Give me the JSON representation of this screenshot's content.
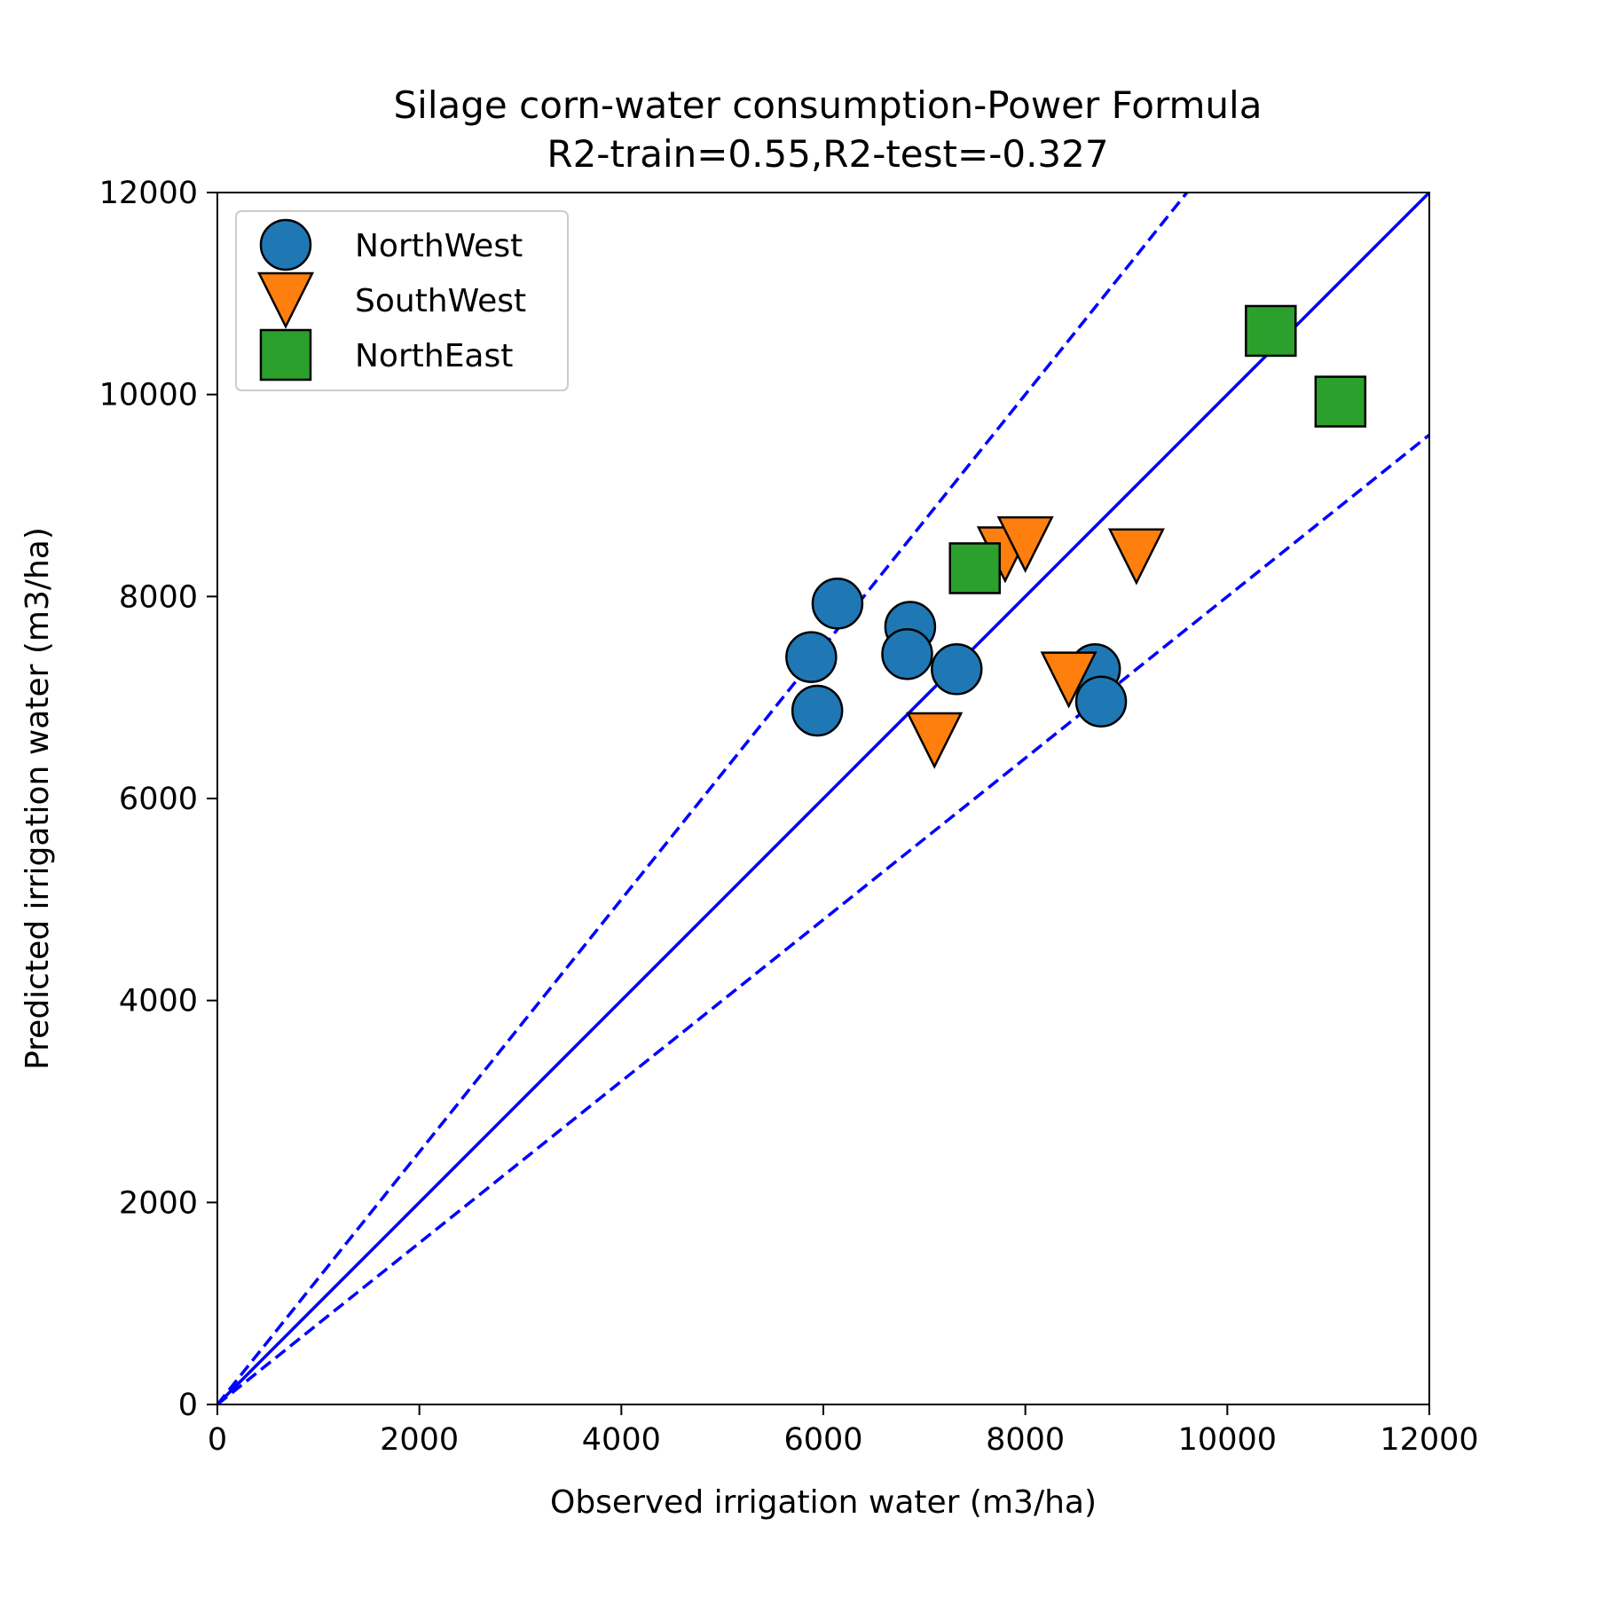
{
  "chart_data": {
    "type": "scatter",
    "title": "Silage corn-water consumption-Power Formula",
    "subtitle": "R2-train=0.55,R2-test=-0.327",
    "xlabel": "Observed irrigation water (m3/ha)",
    "ylabel": "Predicted irrigation water (m3/ha)",
    "xlim": [
      0,
      12000
    ],
    "ylim": [
      0,
      12000
    ],
    "xticks": [
      "0",
      "2000",
      "4000",
      "6000",
      "8000",
      "10000",
      "12000"
    ],
    "yticks": [
      "0",
      "2000",
      "4000",
      "6000",
      "8000",
      "10000",
      "12000"
    ],
    "grid": false,
    "legend_position": "top-left",
    "reference_lines": [
      {
        "kind": "1:1",
        "slope": 1.0,
        "style": "solid",
        "color": "#0000ff"
      },
      {
        "kind": "upper bound",
        "slope": 1.25,
        "style": "dashed",
        "color": "#0000ff"
      },
      {
        "kind": "lower bound",
        "slope": 0.8,
        "style": "dashed",
        "color": "#0000ff"
      }
    ],
    "series": [
      {
        "name": "NorthWest",
        "marker": "circle",
        "color": "#1f77b4",
        "points": [
          [
            5880,
            7400
          ],
          [
            5940,
            6870
          ],
          [
            6140,
            7930
          ],
          [
            6860,
            7700
          ],
          [
            6830,
            7430
          ],
          [
            7320,
            7280
          ],
          [
            8690,
            7280
          ],
          [
            8750,
            6960
          ]
        ]
      },
      {
        "name": "SouthWest",
        "marker": "triangle-down",
        "color": "#ff7f0e",
        "points": [
          [
            7100,
            6580
          ],
          [
            7800,
            8420
          ],
          [
            8000,
            8520
          ],
          [
            8430,
            7180
          ],
          [
            9100,
            8400
          ]
        ]
      },
      {
        "name": "NorthEast",
        "marker": "square",
        "color": "#2ca02c",
        "points": [
          [
            7500,
            8280
          ],
          [
            10430,
            10630
          ],
          [
            11120,
            9930
          ]
        ]
      }
    ]
  }
}
